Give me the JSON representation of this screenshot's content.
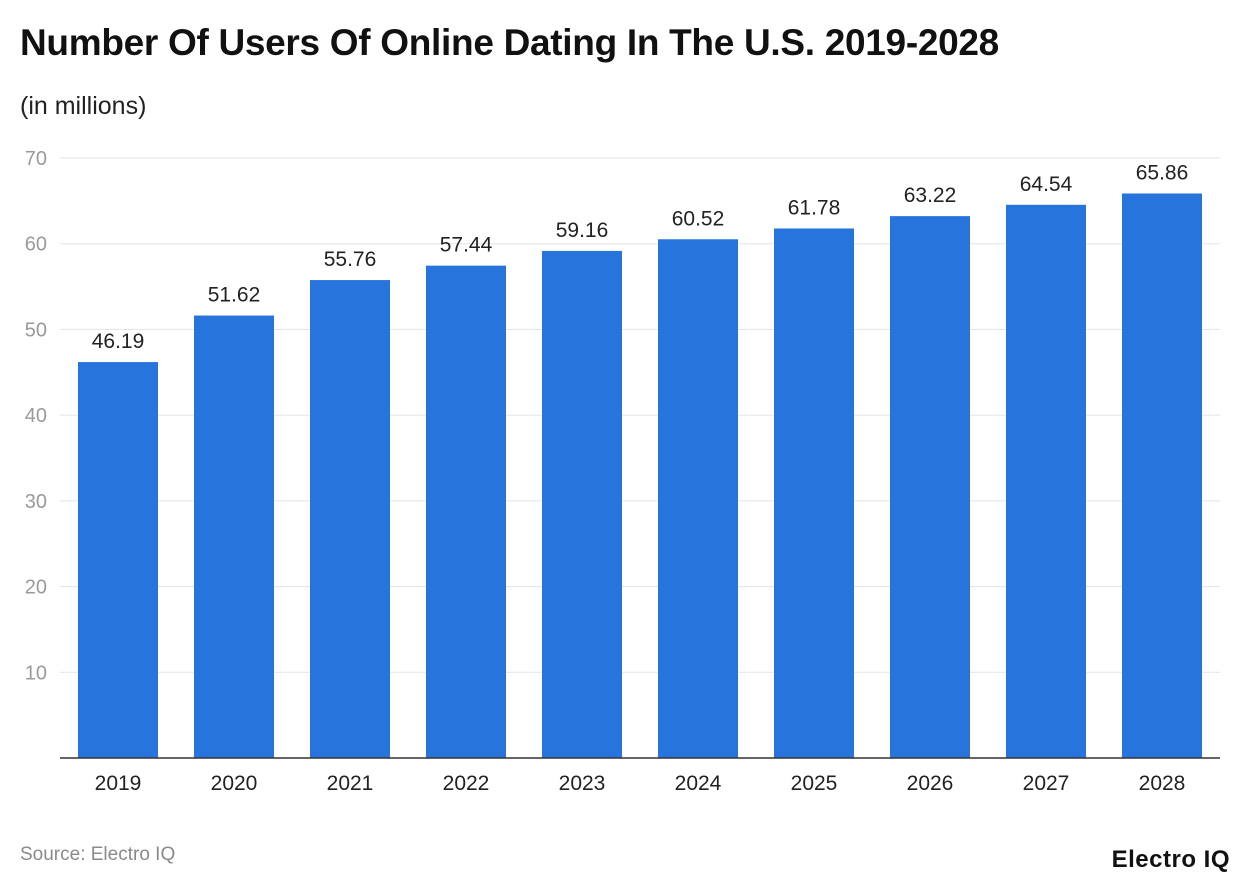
{
  "chart_data": {
    "type": "bar",
    "title": "Number Of Users Of Online Dating In The U.S. 2019-2028",
    "subtitle": "(in millions)",
    "categories": [
      "2019",
      "2020",
      "2021",
      "2022",
      "2023",
      "2024",
      "2025",
      "2026",
      "2027",
      "2028"
    ],
    "values": [
      46.19,
      51.62,
      55.76,
      57.44,
      59.16,
      60.52,
      61.78,
      63.22,
      64.54,
      65.86
    ],
    "ylim": [
      0,
      70
    ],
    "yticks": [
      10,
      20,
      30,
      40,
      50,
      60,
      70
    ],
    "grid": true,
    "bar_color": "#2874dd",
    "xlabel": "",
    "ylabel": ""
  },
  "source": "Source: Electro IQ",
  "logo": "Electro IQ"
}
